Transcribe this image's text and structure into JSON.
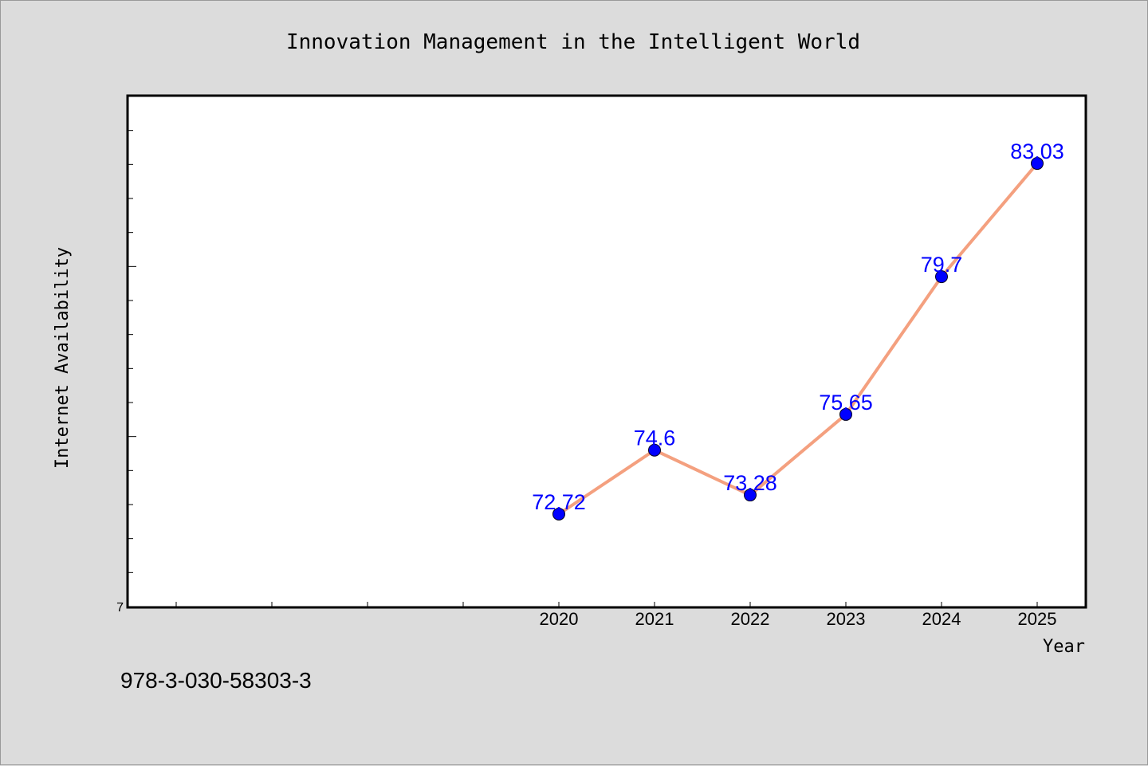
{
  "chart_data": {
    "type": "line",
    "title": "Innovation Management in the Intelligent World",
    "xlabel": "Year",
    "ylabel": "Internet Availability",
    "x": [
      "2020",
      "2021",
      "2022",
      "2023",
      "2024",
      "2025"
    ],
    "series": [
      {
        "values": [
          72.72,
          74.6,
          73.28,
          75.65,
          79.7,
          83.03
        ]
      }
    ],
    "data_labels": [
      "72.72",
      "74.6",
      "73.28",
      "75.65",
      "79.7",
      "83.03"
    ],
    "y_origin_label": "7",
    "ylim": [
      70,
      85
    ],
    "grid": false,
    "legend": "none",
    "colors": {
      "line": "#f4a07f",
      "marker": "#0000ff",
      "label": "#0000ff",
      "plot_bg": "#ffffff",
      "page_bg": "#dcdcdc"
    }
  },
  "footer": {
    "text": "978-3-030-58303-3"
  }
}
